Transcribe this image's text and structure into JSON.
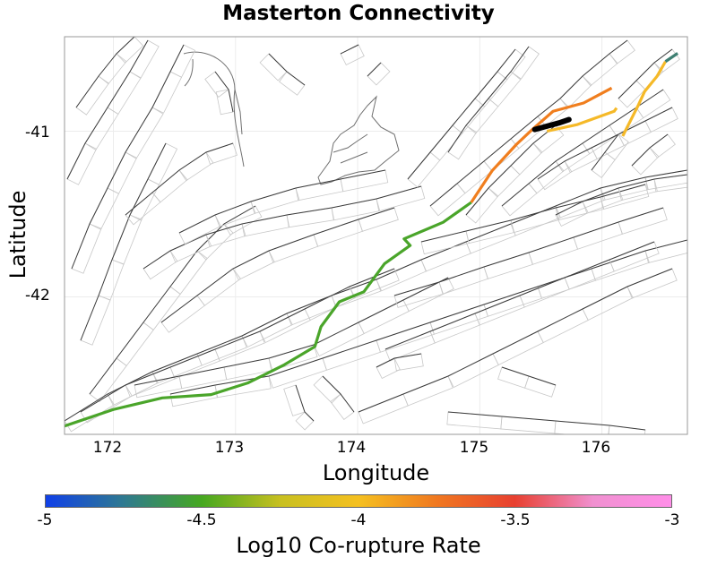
{
  "title": "Masterton Connectivity",
  "xlabel": "Longitude",
  "ylabel": "Latitude",
  "x_ticks": [
    "172",
    "173",
    "174",
    "175",
    "176"
  ],
  "y_ticks": [
    "-41",
    "-42"
  ],
  "colorbar": {
    "label": "Log10 Co-rupture Rate",
    "ticks": [
      "-5",
      "-4.5",
      "-4",
      "-3.5",
      "-3"
    ],
    "range": [
      -5,
      -3
    ],
    "colors": [
      "#1040e8",
      "#2f7a90",
      "#46a820",
      "#c8c020",
      "#f5c020",
      "#f07820",
      "#e84030",
      "#f090d0",
      "#ff8ee8"
    ]
  },
  "highlight_colors": {
    "target": "#000000",
    "green": "#4aa52a",
    "orange": "#f07e1e",
    "yellow": "#f5b928",
    "teal": "#3e7f72"
  },
  "chart_data": {
    "type": "map",
    "title": "Masterton Connectivity",
    "xlabel": "Longitude",
    "ylabel": "Latitude",
    "xlim": [
      171.6,
      176.7
    ],
    "ylim": [
      -42.83,
      -40.43
    ],
    "grid": true,
    "target_fault": {
      "color": "#000000",
      "trace": [
        [
          175.45,
          -40.99
        ],
        [
          175.55,
          -40.97
        ],
        [
          175.65,
          -40.95
        ],
        [
          175.73,
          -40.93
        ]
      ]
    },
    "ruptures": [
      {
        "log10_rate": -4.5,
        "color": "#4aa52a",
        "trace": [
          [
            171.6,
            -42.78
          ],
          [
            172.0,
            -42.68
          ],
          [
            172.4,
            -42.61
          ],
          [
            172.8,
            -42.59
          ],
          [
            173.1,
            -42.52
          ],
          [
            173.4,
            -42.41
          ],
          [
            173.65,
            -42.3
          ],
          [
            173.7,
            -42.18
          ],
          [
            173.85,
            -42.03
          ],
          [
            174.05,
            -41.97
          ],
          [
            174.22,
            -41.8
          ],
          [
            174.43,
            -41.69
          ],
          [
            174.38,
            -41.65
          ],
          [
            174.7,
            -41.55
          ],
          [
            174.93,
            -41.43
          ]
        ]
      },
      {
        "log10_rate": -3.75,
        "color": "#f07e1e",
        "trace": [
          [
            174.93,
            -41.43
          ],
          [
            175.1,
            -41.24
          ],
          [
            175.3,
            -41.08
          ],
          [
            175.43,
            -40.99
          ],
          [
            175.6,
            -40.88
          ],
          [
            175.85,
            -40.83
          ],
          [
            176.08,
            -40.74
          ]
        ]
      },
      {
        "log10_rate": -3.95,
        "color": "#f5b928",
        "trace": [
          [
            175.55,
            -41.0
          ],
          [
            175.8,
            -40.96
          ],
          [
            176.1,
            -40.88
          ],
          [
            176.12,
            -40.86
          ]
        ]
      },
      {
        "log10_rate": -3.95,
        "color": "#f5b928",
        "trace": [
          [
            176.17,
            -41.03
          ],
          [
            176.3,
            -40.84
          ],
          [
            176.35,
            -40.76
          ],
          [
            176.45,
            -40.67
          ],
          [
            176.52,
            -40.58
          ]
        ]
      },
      {
        "log10_rate": -4.7,
        "color": "#3e7f72",
        "trace": [
          [
            176.52,
            -40.58
          ],
          [
            176.62,
            -40.53
          ]
        ]
      }
    ]
  }
}
